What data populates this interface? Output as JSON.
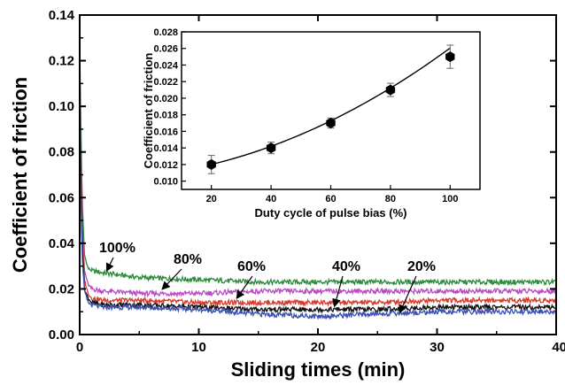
{
  "chart_data": [
    {
      "type": "line",
      "xlabel": "Sliding times (min)",
      "ylabel": "Coefficient of friction",
      "xlim": [
        0,
        40
      ],
      "ylim": [
        0,
        0.14
      ],
      "xticks": [
        0,
        10,
        20,
        30,
        40
      ],
      "xtick_labels": [
        "0",
        "10",
        "20",
        "30",
        "40"
      ],
      "yticks": [
        0.0,
        0.02,
        0.04,
        0.06,
        0.08,
        0.1,
        0.12,
        0.14
      ],
      "ytick_labels": [
        "0.00",
        "0.02",
        "0.04",
        "0.06",
        "0.08",
        "0.10",
        "0.12",
        "0.14"
      ],
      "grid": false,
      "series": [
        {
          "name": "100%",
          "color": "#2e8b3e",
          "x": [
            0,
            0.2,
            0.4,
            0.7,
            1,
            2,
            5,
            10,
            15,
            20,
            25,
            30,
            35,
            40
          ],
          "y": [
            0.125,
            0.06,
            0.035,
            0.029,
            0.028,
            0.027,
            0.025,
            0.024,
            0.023,
            0.023,
            0.023,
            0.023,
            0.023,
            0.023
          ]
        },
        {
          "name": "80%",
          "color": "#b84bc0",
          "x": [
            0,
            0.2,
            0.4,
            0.7,
            1,
            2,
            5,
            10,
            15,
            20,
            25,
            30,
            35,
            40
          ],
          "y": [
            0.118,
            0.05,
            0.028,
            0.022,
            0.02,
            0.019,
            0.018,
            0.018,
            0.019,
            0.019,
            0.019,
            0.019,
            0.019,
            0.019
          ]
        },
        {
          "name": "60%",
          "color": "#d93a2c",
          "x": [
            0,
            0.2,
            0.4,
            0.7,
            1,
            2,
            5,
            10,
            15,
            20,
            25,
            30,
            35,
            40
          ],
          "y": [
            0.108,
            0.045,
            0.024,
            0.018,
            0.016,
            0.015,
            0.015,
            0.014,
            0.014,
            0.014,
            0.014,
            0.015,
            0.015,
            0.015
          ]
        },
        {
          "name": "40%",
          "color": "#111111",
          "x": [
            0,
            0.2,
            0.4,
            0.7,
            1,
            2,
            5,
            10,
            15,
            20,
            25,
            30,
            35,
            40
          ],
          "y": [
            0.1,
            0.04,
            0.02,
            0.016,
            0.014,
            0.013,
            0.013,
            0.012,
            0.011,
            0.011,
            0.011,
            0.012,
            0.012,
            0.012
          ]
        },
        {
          "name": "20%",
          "color": "#3a4fb0",
          "x": [
            0,
            0.2,
            0.4,
            0.7,
            1,
            2,
            5,
            10,
            15,
            20,
            25,
            30,
            35,
            40
          ],
          "y": [
            0.09,
            0.035,
            0.019,
            0.014,
            0.013,
            0.012,
            0.012,
            0.011,
            0.009,
            0.008,
            0.009,
            0.01,
            0.01,
            0.01
          ]
        }
      ],
      "annotations": [
        {
          "text": "100%",
          "series": "100%",
          "x": 1.2,
          "y": 0.028
        },
        {
          "text": "80%",
          "series": "80%",
          "x": 5.5,
          "y": 0.018
        },
        {
          "text": "60%",
          "series": "60%",
          "x": 12.5,
          "y": 0.015
        },
        {
          "text": "40%",
          "series": "40%",
          "x": 21.5,
          "y": 0.012
        },
        {
          "text": "20%",
          "series": "20%",
          "x": 26.5,
          "y": 0.009
        }
      ]
    },
    {
      "type": "line",
      "xlabel": "Duty cycle of pulse bias (%)",
      "ylabel": "Coefficient of friction",
      "xlim": [
        10,
        110
      ],
      "ylim": [
        0.009,
        0.028
      ],
      "xticks": [
        20,
        40,
        60,
        80,
        100
      ],
      "xtick_labels": [
        "20",
        "40",
        "60",
        "80",
        "100"
      ],
      "yticks": [
        0.01,
        0.012,
        0.014,
        0.016,
        0.018,
        0.02,
        0.022,
        0.024,
        0.026,
        0.028
      ],
      "ytick_labels": [
        "0.010",
        "0.012",
        "0.014",
        "0.016",
        "0.018",
        "0.020",
        "0.022",
        "0.024",
        "0.026",
        "0.028"
      ],
      "grid": false,
      "markers": "hexagon",
      "x": [
        20,
        40,
        60,
        80,
        100
      ],
      "y": [
        0.012,
        0.014,
        0.017,
        0.021,
        0.025
      ],
      "error": [
        0.0011,
        0.0007,
        0.0006,
        0.0008,
        0.0014
      ]
    }
  ]
}
